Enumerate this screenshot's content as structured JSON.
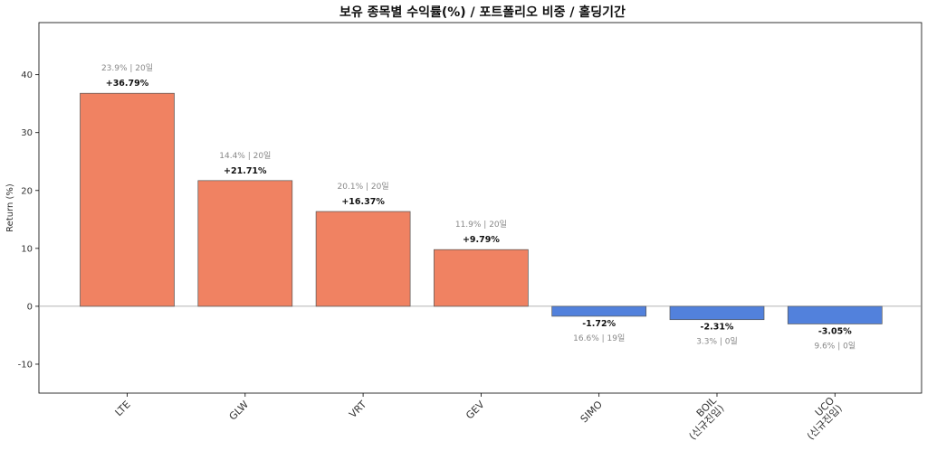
{
  "chart_data": {
    "type": "bar",
    "title": "보유 종목별 수익률(%) / 포트폴리오 비중 / 홀딩기간",
    "xlabel": "",
    "ylabel": "Return (%)",
    "ylim": [
      -15,
      49
    ],
    "yticks": [
      -10,
      0,
      10,
      20,
      30,
      40
    ],
    "categories": [
      "LTE",
      "GLW",
      "VRT",
      "GEV",
      "SIMO",
      "BOIL\n(신규진입)",
      "UCO\n(신규진입)"
    ],
    "values": [
      36.79,
      21.71,
      16.37,
      9.79,
      -1.72,
      -2.31,
      -3.05
    ],
    "value_labels": [
      "+36.79%",
      "+21.71%",
      "+16.37%",
      "+9.79%",
      "-1.72%",
      "-2.31%",
      "-3.05%"
    ],
    "sub_labels": [
      "23.9% | 20일",
      "14.4% | 20일",
      "20.1% | 20일",
      "11.9% | 20일",
      "16.6% | 19일",
      "3.3% | 0일",
      "9.6% | 0일"
    ],
    "grid": false,
    "zero_line": true,
    "colors": {
      "positive": "#f08262",
      "negative": "#5281dc",
      "edge": "#555555",
      "zero_line": "#999999"
    }
  }
}
